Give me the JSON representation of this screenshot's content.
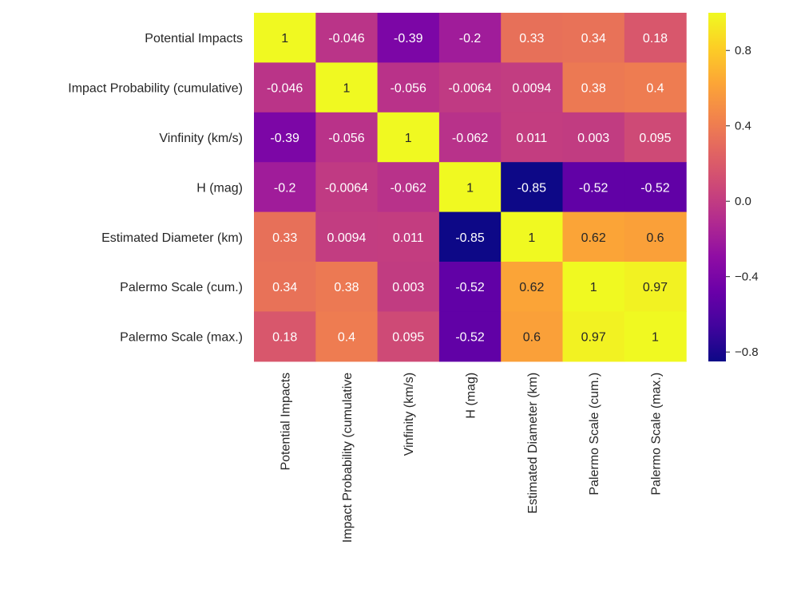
{
  "chart_data": {
    "type": "heatmap",
    "title": "",
    "xlabel": "",
    "ylabel": "",
    "colormap": "plasma",
    "vmin": -0.85,
    "vmax": 1,
    "rows": [
      "Potential Impacts",
      "Impact Probability (cumulative)",
      "Vinfinity (km/s)",
      "H (mag)",
      "Estimated Diameter (km)",
      "Palermo Scale (cum.)",
      "Palermo Scale (max.)"
    ],
    "columns": [
      "Potential Impacts",
      "Impact Probability (cumulative",
      "Vinfinity (km/s)",
      "H (mag)",
      "Estimated Diameter (km)",
      "Palermo Scale (cum.)",
      "Palermo Scale (max.)"
    ],
    "values": [
      [
        1,
        -0.046,
        -0.39,
        -0.2,
        0.33,
        0.34,
        0.18
      ],
      [
        -0.046,
        1,
        -0.056,
        -0.0064,
        0.0094,
        0.38,
        0.4
      ],
      [
        -0.39,
        -0.056,
        1,
        -0.062,
        0.011,
        0.003,
        0.095
      ],
      [
        -0.2,
        -0.0064,
        -0.062,
        1,
        -0.85,
        -0.52,
        -0.52
      ],
      [
        0.33,
        0.0094,
        0.011,
        -0.85,
        1,
        0.62,
        0.6
      ],
      [
        0.34,
        0.38,
        0.003,
        -0.52,
        0.62,
        1,
        0.97
      ],
      [
        0.18,
        0.4,
        0.095,
        -0.52,
        0.6,
        0.97,
        1
      ]
    ],
    "value_labels": [
      [
        "1",
        "-0.046",
        "-0.39",
        "-0.2",
        "0.33",
        "0.34",
        "0.18"
      ],
      [
        "-0.046",
        "1",
        "-0.056",
        "-0.0064",
        "0.0094",
        "0.38",
        "0.4"
      ],
      [
        "-0.39",
        "-0.056",
        "1",
        "-0.062",
        "0.011",
        "0.003",
        "0.095"
      ],
      [
        "-0.2",
        "-0.0064",
        "-0.062",
        "1",
        "-0.85",
        "-0.52",
        "-0.52"
      ],
      [
        "0.33",
        "0.0094",
        "0.011",
        "-0.85",
        "1",
        "0.62",
        "0.6"
      ],
      [
        "0.34",
        "0.38",
        "0.003",
        "-0.52",
        "0.62",
        "1",
        "0.97"
      ],
      [
        "0.18",
        "0.4",
        "0.095",
        "-0.52",
        "0.6",
        "0.97",
        "1"
      ]
    ],
    "colorbar": {
      "ticks": [
        0.8,
        0.4,
        0.0,
        -0.4,
        -0.8
      ],
      "tick_labels": [
        "0.8",
        "0.4",
        "0.0",
        "−0.4",
        "−0.8"
      ]
    }
  }
}
